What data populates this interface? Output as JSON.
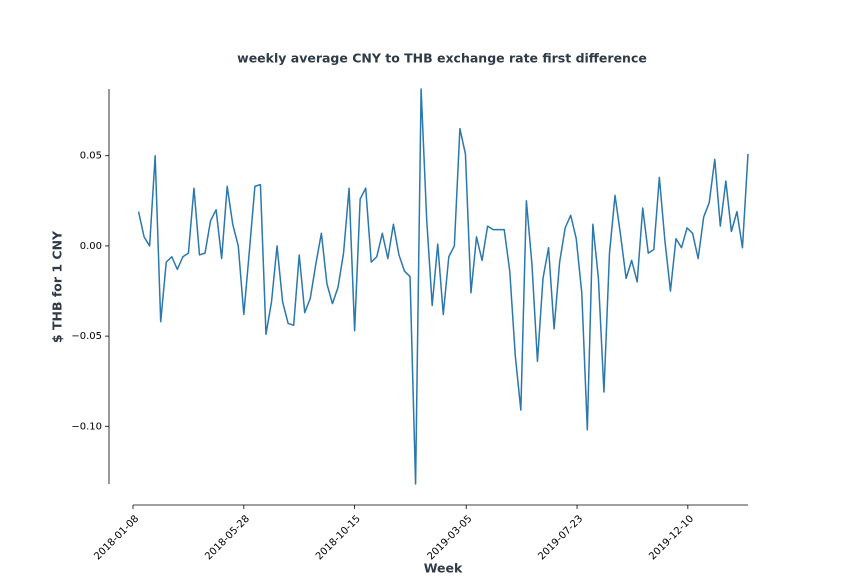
{
  "chart_data": {
    "type": "line",
    "title": "weekly average CNY to THB exchange rate first difference",
    "x_label": "Week",
    "y_label": "$ THB for 1 CNY",
    "color": "#2a78ad",
    "x": [
      "2018-01-15",
      "2018-01-22",
      "2018-01-29",
      "2018-02-05",
      "2018-02-12",
      "2018-02-19",
      "2018-02-26",
      "2018-03-05",
      "2018-03-12",
      "2018-03-19",
      "2018-03-26",
      "2018-04-02",
      "2018-04-09",
      "2018-04-16",
      "2018-04-23",
      "2018-04-30",
      "2018-05-07",
      "2018-05-14",
      "2018-05-21",
      "2018-05-28",
      "2018-06-04",
      "2018-06-11",
      "2018-06-18",
      "2018-06-25",
      "2018-07-02",
      "2018-07-09",
      "2018-07-16",
      "2018-07-23",
      "2018-07-30",
      "2018-08-06",
      "2018-08-13",
      "2018-08-20",
      "2018-08-27",
      "2018-09-03",
      "2018-09-10",
      "2018-09-17",
      "2018-09-24",
      "2018-10-01",
      "2018-10-08",
      "2018-10-15",
      "2018-10-22",
      "2018-10-29",
      "2018-11-05",
      "2018-11-12",
      "2018-11-19",
      "2018-11-26",
      "2018-12-03",
      "2018-12-10",
      "2018-12-17",
      "2018-12-24",
      "2018-12-31",
      "2019-01-07",
      "2019-01-14",
      "2019-01-21",
      "2019-01-28",
      "2019-02-04",
      "2019-02-11",
      "2019-02-18",
      "2019-02-25",
      "2019-03-04",
      "2019-03-11",
      "2019-03-18",
      "2019-03-25",
      "2019-04-01",
      "2019-04-08",
      "2019-04-15",
      "2019-04-22",
      "2019-04-29",
      "2019-05-06",
      "2019-05-13",
      "2019-05-20",
      "2019-05-27",
      "2019-06-03",
      "2019-06-10",
      "2019-06-17",
      "2019-06-24",
      "2019-07-01",
      "2019-07-08",
      "2019-07-15",
      "2019-07-22",
      "2019-07-29",
      "2019-08-05",
      "2019-08-12",
      "2019-08-19",
      "2019-08-26",
      "2019-09-02",
      "2019-09-09",
      "2019-09-16",
      "2019-09-23",
      "2019-09-30",
      "2019-10-07",
      "2019-10-14",
      "2019-10-21",
      "2019-10-28",
      "2019-11-04",
      "2019-11-11",
      "2019-11-18",
      "2019-11-25",
      "2019-12-02",
      "2019-12-09",
      "2019-12-16",
      "2019-12-23",
      "2019-12-30",
      "2020-01-06",
      "2020-01-13",
      "2020-01-20",
      "2020-01-27",
      "2020-02-03",
      "2020-02-10",
      "2020-02-17",
      "2020-02-24"
    ],
    "values": [
      0.019,
      0.005,
      0.0,
      0.05,
      -0.042,
      -0.009,
      -0.006,
      -0.013,
      -0.006,
      -0.004,
      0.032,
      -0.005,
      -0.004,
      0.014,
      0.02,
      -0.007,
      0.033,
      0.012,
      0.0,
      -0.038,
      -0.003,
      0.033,
      0.034,
      -0.049,
      -0.031,
      0.0,
      -0.031,
      -0.043,
      -0.044,
      -0.005,
      -0.037,
      -0.029,
      -0.01,
      0.007,
      -0.021,
      -0.032,
      -0.023,
      -0.004,
      0.032,
      -0.047,
      0.026,
      0.032,
      -0.009,
      -0.006,
      0.007,
      -0.007,
      0.012,
      -0.005,
      -0.014,
      -0.017,
      -0.132,
      0.087,
      0.015,
      -0.033,
      0.001,
      -0.038,
      -0.006,
      0.0,
      0.065,
      0.051,
      -0.026,
      0.005,
      -0.008,
      0.011,
      0.009,
      0.009,
      0.009,
      -0.014,
      -0.061,
      -0.091,
      0.025,
      -0.01,
      -0.064,
      -0.018,
      -0.001,
      -0.046,
      -0.009,
      0.01,
      0.017,
      0.004,
      -0.026,
      -0.102,
      0.012,
      -0.018,
      -0.081,
      -0.004,
      0.028,
      0.006,
      -0.018,
      -0.008,
      -0.02,
      0.021,
      -0.004,
      -0.002,
      0.038,
      0.003,
      -0.025,
      0.004,
      -0.001,
      0.01,
      0.007,
      -0.007,
      0.016,
      0.024,
      0.048,
      0.011,
      0.036,
      0.008,
      0.019,
      -0.001,
      0.051
    ],
    "xlim": [
      "2018-01-08",
      "2020-02-24"
    ],
    "xticks": [
      "2018-01-08",
      "2018-05-28",
      "2018-10-15",
      "2019-03-05",
      "2019-07-23",
      "2019-12-10"
    ],
    "ylim": [
      -0.132,
      0.087
    ],
    "yticks": [
      {
        "value": -0.1,
        "label": "−0.10"
      },
      {
        "value": -0.05,
        "label": "−0.05"
      },
      {
        "value": 0,
        "label": "0.00"
      },
      {
        "value": 0.05,
        "label": "0.05"
      }
    ]
  }
}
